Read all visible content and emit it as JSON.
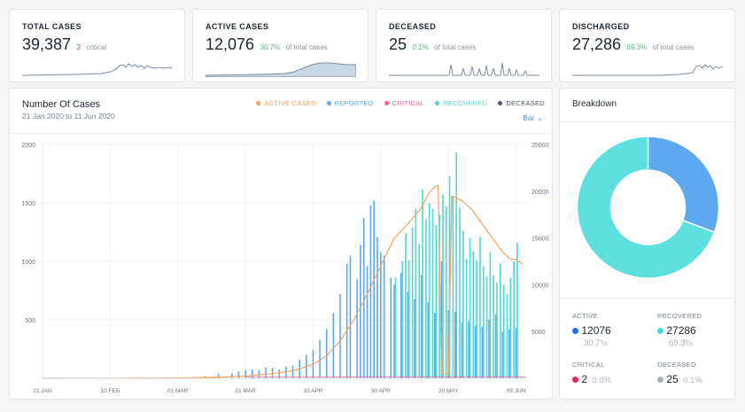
{
  "stats": [
    {
      "title": "TOTAL CASES",
      "value": "39,387",
      "sub_value": "2",
      "sub_text": "critical",
      "sub_color": "red"
    },
    {
      "title": "ACTIVE CASES",
      "value": "12,076",
      "sub_value": "30.7%",
      "sub_text": "of total cases",
      "sub_color": "green"
    },
    {
      "title": "DECEASED",
      "value": "25",
      "sub_value": "0.1%",
      "sub_text": "of total cases",
      "sub_color": "green"
    },
    {
      "title": "DISCHARGED",
      "value": "27,286",
      "sub_value": "69.3%",
      "sub_text": "of total cases",
      "sub_color": "green"
    }
  ],
  "main_chart": {
    "title": "Number Of Cases",
    "subtitle": "21 Jan 2020 to 11 Jun 2020",
    "chart_type_selector": "Bar",
    "legend": [
      {
        "label": "ACTIVE CASES",
        "color": "#f5a25d"
      },
      {
        "label": "REPORTED",
        "color": "#5ea8f0"
      },
      {
        "label": "CRITICAL",
        "color": "#f06292"
      },
      {
        "label": "RECOVERED",
        "color": "#4ed8d6"
      },
      {
        "label": "DECEASED",
        "color": "#4a5568"
      }
    ]
  },
  "chart_data": {
    "type": "bar",
    "x_tick_labels": [
      "21 JAN",
      "10 FEB",
      "01 MAR",
      "21 MAR",
      "10 APR",
      "30 APR",
      "20 MAY",
      "09 JUN"
    ],
    "y_left_ticks": [
      "2000",
      "1500",
      "1000",
      "500"
    ],
    "y_right_ticks": [
      "25000",
      "20000",
      "15000",
      "10000",
      "5000"
    ],
    "ylim_left": [
      0,
      2000
    ],
    "ylim_right": [
      0,
      25000
    ],
    "day_count": 143,
    "reported": [
      {
        "day": 48,
        "value": 20
      },
      {
        "day": 52,
        "value": 40
      },
      {
        "day": 56,
        "value": 45
      },
      {
        "day": 58,
        "value": 60
      },
      {
        "day": 60,
        "value": 70
      },
      {
        "day": 62,
        "value": 75
      },
      {
        "day": 64,
        "value": 70
      },
      {
        "day": 66,
        "value": 95
      },
      {
        "day": 68,
        "value": 90
      },
      {
        "day": 70,
        "value": 75
      },
      {
        "day": 72,
        "value": 100
      },
      {
        "day": 74,
        "value": 110
      },
      {
        "day": 76,
        "value": 160
      },
      {
        "day": 78,
        "value": 200
      },
      {
        "day": 80,
        "value": 240
      },
      {
        "day": 82,
        "value": 330
      },
      {
        "day": 84,
        "value": 420
      },
      {
        "day": 86,
        "value": 560
      },
      {
        "day": 88,
        "value": 720
      },
      {
        "day": 90,
        "value": 980
      },
      {
        "day": 91,
        "value": 1050
      },
      {
        "day": 93,
        "value": 850
      },
      {
        "day": 94,
        "value": 1140
      },
      {
        "day": 95,
        "value": 1370
      },
      {
        "day": 96,
        "value": 960
      },
      {
        "day": 97,
        "value": 1480
      },
      {
        "day": 98,
        "value": 1520
      },
      {
        "day": 99,
        "value": 1210
      },
      {
        "day": 100,
        "value": 1080
      },
      {
        "day": 101,
        "value": 1050
      },
      {
        "day": 103,
        "value": 860
      },
      {
        "day": 104,
        "value": 800
      },
      {
        "day": 106,
        "value": 900
      },
      {
        "day": 108,
        "value": 740
      },
      {
        "day": 110,
        "value": 680
      },
      {
        "day": 112,
        "value": 880
      },
      {
        "day": 114,
        "value": 650
      },
      {
        "day": 116,
        "value": 560
      },
      {
        "day": 118,
        "value": 1000
      },
      {
        "day": 120,
        "value": 580
      },
      {
        "day": 122,
        "value": 570
      },
      {
        "day": 124,
        "value": 480
      },
      {
        "day": 126,
        "value": 490
      },
      {
        "day": 128,
        "value": 450
      },
      {
        "day": 130,
        "value": 440
      },
      {
        "day": 132,
        "value": 500
      },
      {
        "day": 134,
        "value": 550
      },
      {
        "day": 136,
        "value": 400
      },
      {
        "day": 138,
        "value": 420
      },
      {
        "day": 140,
        "value": 430
      }
    ],
    "recovered": [
      {
        "day": 104,
        "value": 860
      },
      {
        "day": 106,
        "value": 1000
      },
      {
        "day": 107,
        "value": 1240
      },
      {
        "day": 108,
        "value": 1010
      },
      {
        "day": 109,
        "value": 1290
      },
      {
        "day": 110,
        "value": 1450
      },
      {
        "day": 111,
        "value": 1150
      },
      {
        "day": 112,
        "value": 1620
      },
      {
        "day": 113,
        "value": 1360
      },
      {
        "day": 114,
        "value": 1500
      },
      {
        "day": 115,
        "value": 1450
      },
      {
        "day": 116,
        "value": 1310
      },
      {
        "day": 117,
        "value": 1400
      },
      {
        "day": 118,
        "value": 1570
      },
      {
        "day": 119,
        "value": 1470
      },
      {
        "day": 120,
        "value": 1730
      },
      {
        "day": 121,
        "value": 1550
      },
      {
        "day": 122,
        "value": 1930
      },
      {
        "day": 123,
        "value": 1460
      },
      {
        "day": 124,
        "value": 1260
      },
      {
        "day": 125,
        "value": 1020
      },
      {
        "day": 126,
        "value": 1200
      },
      {
        "day": 127,
        "value": 1090
      },
      {
        "day": 128,
        "value": 1010
      },
      {
        "day": 129,
        "value": 1210
      },
      {
        "day": 130,
        "value": 960
      },
      {
        "day": 131,
        "value": 870
      },
      {
        "day": 132,
        "value": 1080
      },
      {
        "day": 133,
        "value": 880
      },
      {
        "day": 134,
        "value": 820
      },
      {
        "day": 135,
        "value": 980
      },
      {
        "day": 136,
        "value": 800
      },
      {
        "day": 137,
        "value": 720
      },
      {
        "day": 138,
        "value": 860
      },
      {
        "day": 139,
        "value": 1000
      },
      {
        "day": 140,
        "value": 1160
      }
    ],
    "active_right_axis": [
      {
        "day": 0,
        "value": 0
      },
      {
        "day": 40,
        "value": 40
      },
      {
        "day": 55,
        "value": 150
      },
      {
        "day": 62,
        "value": 300
      },
      {
        "day": 68,
        "value": 500
      },
      {
        "day": 74,
        "value": 800
      },
      {
        "day": 80,
        "value": 1500
      },
      {
        "day": 84,
        "value": 2400
      },
      {
        "day": 88,
        "value": 4000
      },
      {
        "day": 92,
        "value": 6200
      },
      {
        "day": 96,
        "value": 9000
      },
      {
        "day": 100,
        "value": 12000
      },
      {
        "day": 104,
        "value": 15000
      },
      {
        "day": 108,
        "value": 16500
      },
      {
        "day": 112,
        "value": 18200
      },
      {
        "day": 114,
        "value": 19700
      },
      {
        "day": 116,
        "value": 20500
      },
      {
        "day": 117,
        "value": 20600
      },
      {
        "day": 118,
        "value": 500
      },
      {
        "day": 120,
        "value": 450
      },
      {
        "day": 121,
        "value": 19500
      },
      {
        "day": 124,
        "value": 19000
      },
      {
        "day": 127,
        "value": 18000
      },
      {
        "day": 130,
        "value": 16500
      },
      {
        "day": 133,
        "value": 15000
      },
      {
        "day": 136,
        "value": 13500
      },
      {
        "day": 138,
        "value": 12800
      },
      {
        "day": 140,
        "value": 12700
      },
      {
        "day": 142,
        "value": 12200
      }
    ]
  },
  "breakdown": {
    "title": "Breakdown",
    "items": [
      {
        "label": "ACTIVE",
        "value": "12076",
        "pct": "30.7%",
        "color": "#1f6ff2"
      },
      {
        "label": "RECOVERED",
        "value": "27286",
        "pct": "69.3%",
        "color": "#4ed8d6"
      },
      {
        "label": "CRITICAL",
        "value": "2",
        "pct": "0.0%",
        "color": "#e8215b"
      },
      {
        "label": "DECEASED",
        "value": "25",
        "pct": "0.1%",
        "color": "#a8aeb5"
      }
    ],
    "donut": [
      {
        "name": "ACTIVE",
        "fraction": 0.307,
        "color": "#5ea8f0"
      },
      {
        "name": "RECOVERED",
        "fraction": 0.693,
        "color": "#5edfe0"
      }
    ]
  }
}
